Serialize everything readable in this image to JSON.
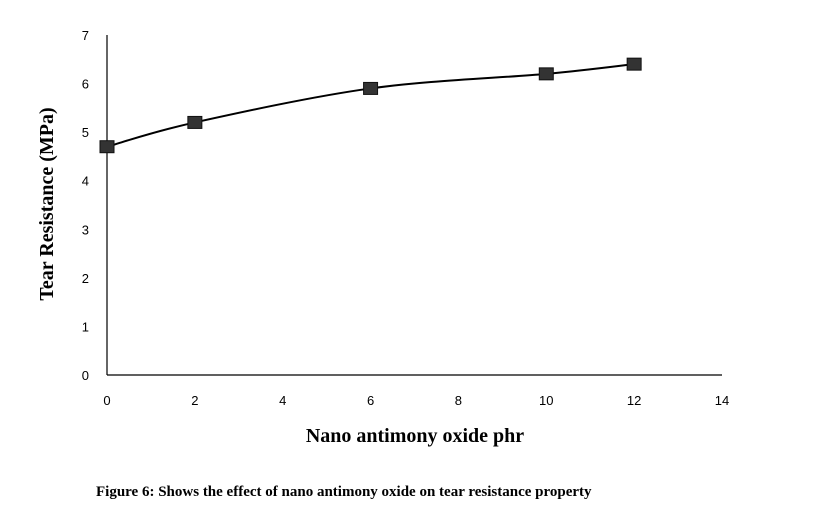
{
  "chart_data": {
    "type": "line",
    "x": [
      0,
      2,
      6,
      10,
      12
    ],
    "series": [
      {
        "values": [
          4.7,
          5.2,
          5.9,
          6.2,
          6.4
        ]
      }
    ],
    "xlabel": "Nano antimony oxide phr",
    "ylabel": "Tear Resistance (MPa)",
    "xlim": [
      0,
      14
    ],
    "ylim": [
      0,
      7
    ],
    "xticks": [
      0,
      2,
      4,
      6,
      8,
      10,
      12,
      14
    ],
    "yticks": [
      0,
      1,
      2,
      3,
      4,
      5,
      6,
      7
    ],
    "grid": false,
    "smooth": true,
    "marker": "square",
    "line_color": "#000000",
    "marker_color": "#333333"
  },
  "caption": "Figure 6: Shows the effect of nano antimony oxide on tear resistance property"
}
